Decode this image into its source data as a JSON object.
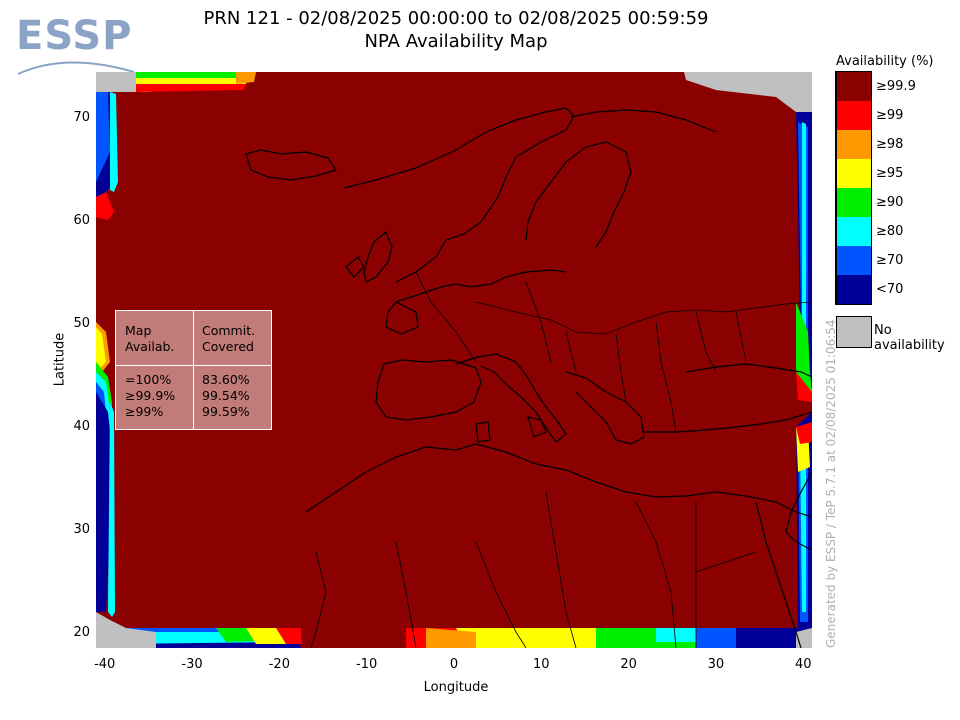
{
  "logo": {
    "text": "ESSP"
  },
  "title": {
    "line1": "PRN 121 - 02/08/2025 00:00:00 to 02/08/2025 00:59:59",
    "line2": "NPA Availability Map"
  },
  "stats_table": {
    "header_left": "Map\nAvailab.",
    "header_right": "Commit.\nCovered",
    "rows_left": "=100%\n≥99.9%\n≥99%",
    "rows_right": "83.60%\n99.54%\n99.59%"
  },
  "legend": {
    "title": "Availability (%)",
    "items": [
      {
        "label": "≥99.9",
        "color": "#8b0000"
      },
      {
        "label": "≥99",
        "color": "#ff0000"
      },
      {
        "label": "≥98",
        "color": "#ff9900"
      },
      {
        "label": "≥95",
        "color": "#ffff00"
      },
      {
        "label": "≥90",
        "color": "#00ee00"
      },
      {
        "label": "≥80",
        "color": "#00ffff"
      },
      {
        "label": "≥70",
        "color": "#0055ff"
      },
      {
        "label": "<70",
        "color": "#000099"
      }
    ],
    "no_availability": {
      "label": "No availability",
      "color": "#c0c0c0"
    }
  },
  "generated_text": "Generated by ESSP / TeP 5.7.1 at 02/08/2025 01:06:54",
  "chart_data": {
    "type": "heatmap",
    "title": "PRN 121 - 02/08/2025 00:00:00 to 02/08/2025 00:59:59",
    "subtitle": "NPA Availability Map",
    "xlabel": "Longitude",
    "ylabel": "Latitude",
    "xlim": [
      -41,
      41
    ],
    "ylim": [
      18.5,
      74.5
    ],
    "xticks": [
      -40,
      -30,
      -20,
      -10,
      0,
      10,
      20,
      30,
      40
    ],
    "yticks": [
      20,
      30,
      40,
      50,
      60,
      70
    ],
    "grid": false,
    "legend_position": "right",
    "dominant_class": "≥99.9",
    "stats": [
      {
        "map_availability": "=100%",
        "commitment_covered": "83.60%"
      },
      {
        "map_availability": "≥99.9%",
        "commitment_covered": "99.54%"
      },
      {
        "map_availability": "≥99%",
        "commitment_covered": "99.59%"
      }
    ]
  }
}
